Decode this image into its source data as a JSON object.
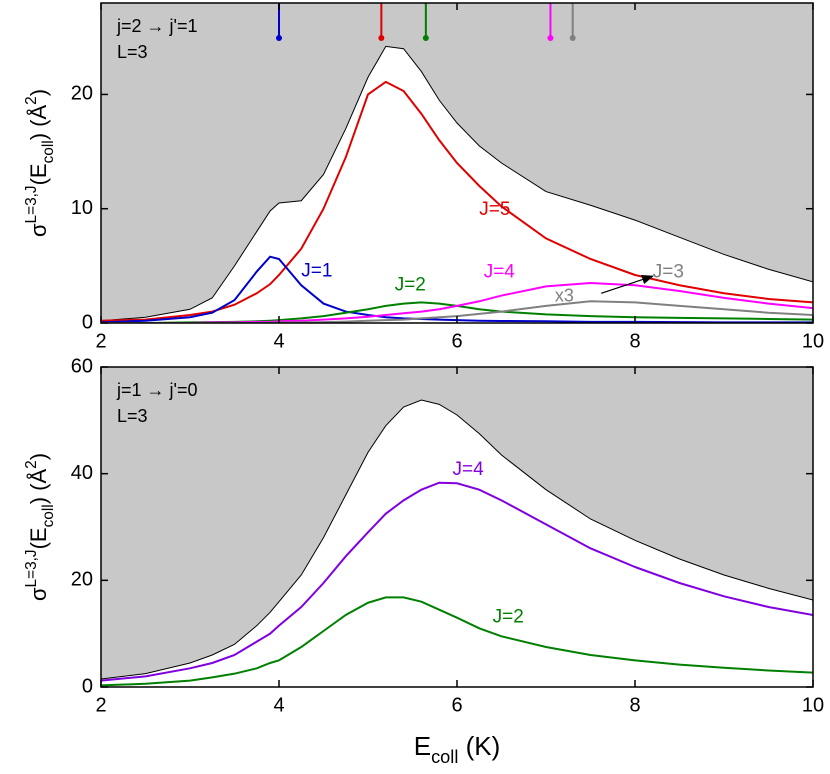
{
  "chart_data": [
    {
      "type": "line",
      "label_lines": [
        "j=2 → j'=1",
        "L=3"
      ],
      "ylabel": [
        "σ",
        "L=3,J",
        "(E",
        "coll",
        ")   (Å",
        "2",
        ")"
      ],
      "x": [
        2,
        2.5,
        3,
        3.25,
        3.5,
        3.75,
        3.9,
        4,
        4.25,
        4.5,
        4.75,
        5,
        5.2,
        5.4,
        5.6,
        5.8,
        6,
        6.25,
        6.5,
        7,
        7.5,
        8,
        8.5,
        9,
        9.5,
        10
      ],
      "xlim": [
        2,
        10
      ],
      "xticks": [
        2,
        4,
        6,
        8,
        10
      ],
      "ylim": [
        0,
        28
      ],
      "yticks": [
        0,
        10,
        20
      ],
      "shade_color": "#c8c8c8",
      "markers": {
        "x": [
          4.0,
          5.15,
          5.65,
          7.05,
          7.3
        ],
        "colors": [
          "#0000cc",
          "#e00000",
          "#008000",
          "#ff00ff",
          "#808080"
        ]
      },
      "annotations": [
        "x3"
      ],
      "series": [
        {
          "color": "#000000",
          "values": [
            0.2,
            0.5,
            1.2,
            2.2,
            5.0,
            8.0,
            9.8,
            10.5,
            10.7,
            13.0,
            17.0,
            21.5,
            24.2,
            24.0,
            22.0,
            19.5,
            17.5,
            15.5,
            14.0,
            11.5,
            10.3,
            9.0,
            7.5,
            6.0,
            4.7,
            3.6
          ]
        },
        {
          "name": "J=5",
          "color": "#e00000",
          "values": [
            0.2,
            0.3,
            0.7,
            1.0,
            1.6,
            2.6,
            3.4,
            4.2,
            6.5,
            10.0,
            14.5,
            20.0,
            21.1,
            20.3,
            18.3,
            16.0,
            14.0,
            12.0,
            10.2,
            7.4,
            5.6,
            4.2,
            3.3,
            2.6,
            2.1,
            1.8
          ]
        },
        {
          "name": "J=1",
          "color": "#0000cc",
          "values": [
            0.05,
            0.2,
            0.5,
            0.9,
            2.0,
            4.5,
            5.8,
            5.6,
            3.3,
            1.7,
            1.0,
            0.7,
            0.5,
            0.4,
            0.35,
            0.3,
            0.25,
            0.2,
            0.18,
            0.15,
            0.1,
            0.1,
            0.08,
            0.06,
            0.05,
            0.05
          ]
        },
        {
          "name": "J=2",
          "color": "#008000",
          "values": [
            0,
            0,
            0.05,
            0.08,
            0.1,
            0.15,
            0.2,
            0.25,
            0.4,
            0.6,
            0.9,
            1.2,
            1.5,
            1.7,
            1.8,
            1.7,
            1.5,
            1.2,
            1.0,
            0.75,
            0.6,
            0.5,
            0.45,
            0.4,
            0.35,
            0.3
          ]
        },
        {
          "name": "J=4",
          "color": "#ff00ff",
          "values": [
            0,
            0,
            0,
            0.05,
            0.05,
            0.1,
            0.1,
            0.15,
            0.2,
            0.3,
            0.4,
            0.55,
            0.7,
            0.85,
            1.0,
            1.2,
            1.5,
            1.9,
            2.4,
            3.2,
            3.5,
            3.3,
            2.8,
            2.2,
            1.7,
            1.3
          ]
        },
        {
          "name": "J=3",
          "color": "#808080",
          "values": [
            0,
            0,
            0,
            0,
            0,
            0,
            0.02,
            0.03,
            0.05,
            0.08,
            0.12,
            0.2,
            0.25,
            0.3,
            0.4,
            0.5,
            0.6,
            0.8,
            1.0,
            1.5,
            1.9,
            1.8,
            1.5,
            1.2,
            0.9,
            0.7
          ]
        }
      ]
    },
    {
      "type": "line",
      "label_lines": [
        "j=1 → j'=0",
        "L=3"
      ],
      "ylabel": [
        "σ",
        "L=3,J",
        "(E",
        "coll",
        ") (Å",
        "2",
        ")"
      ],
      "xlabel": [
        "E",
        "coll",
        " (K)"
      ],
      "x": [
        2,
        2.5,
        3,
        3.25,
        3.5,
        3.75,
        3.9,
        4,
        4.25,
        4.5,
        4.75,
        5,
        5.2,
        5.4,
        5.6,
        5.8,
        6,
        6.25,
        6.5,
        7,
        7.5,
        8,
        8.5,
        9,
        9.5,
        10
      ],
      "xlim": [
        2,
        10
      ],
      "xticks": [
        2,
        4,
        6,
        8,
        10
      ],
      "ylim": [
        0,
        60
      ],
      "yticks": [
        0,
        20,
        40,
        60
      ],
      "shade_color": "#c8c8c8",
      "series": [
        {
          "color": "#000000",
          "values": [
            1.5,
            2.5,
            4.5,
            6.0,
            8.0,
            11.5,
            14.0,
            16.0,
            21.0,
            28.0,
            36.0,
            44.0,
            49.0,
            52.5,
            53.8,
            53.0,
            51.0,
            47.5,
            43.5,
            37.0,
            31.5,
            27.5,
            24.0,
            21.0,
            18.5,
            16.3
          ]
        },
        {
          "name": "J=4",
          "color": "#8000e0",
          "values": [
            1.2,
            2.0,
            3.5,
            4.5,
            6.0,
            8.5,
            10.0,
            11.5,
            15.0,
            19.5,
            24.5,
            29.0,
            32.5,
            35.0,
            37.0,
            38.3,
            38.2,
            37.0,
            35.0,
            30.5,
            26.0,
            22.5,
            19.5,
            17.0,
            15.0,
            13.5
          ]
        },
        {
          "name": "J=2",
          "color": "#008000",
          "values": [
            0.3,
            0.6,
            1.2,
            1.8,
            2.5,
            3.5,
            4.5,
            5.0,
            7.5,
            10.5,
            13.5,
            15.8,
            16.8,
            16.8,
            16.0,
            14.5,
            13.0,
            11.0,
            9.5,
            7.5,
            6.0,
            5.0,
            4.2,
            3.6,
            3.1,
            2.7
          ]
        }
      ]
    }
  ]
}
